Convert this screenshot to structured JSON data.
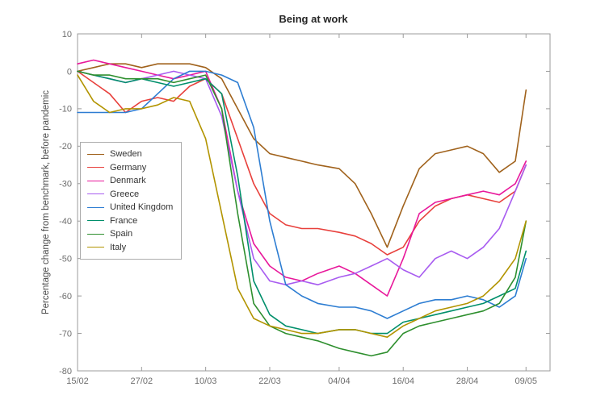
{
  "chart_data": {
    "type": "line",
    "title": "Being at work",
    "xlabel": "",
    "ylabel": "Percentage change from benchmark, before pandemic",
    "ylim": [
      -80,
      10
    ],
    "xlim_days": [
      0,
      88.5
    ],
    "grid": false,
    "legend_position": "top-left-inside",
    "yticks": [
      10,
      0,
      -10,
      -20,
      -30,
      -40,
      -50,
      -60,
      -70,
      -80
    ],
    "xticks": [
      {
        "day": 0,
        "label": "15/02"
      },
      {
        "day": 12,
        "label": "27/02"
      },
      {
        "day": 24,
        "label": "10/03"
      },
      {
        "day": 36,
        "label": "22/03"
      },
      {
        "day": 49,
        "label": "04/04"
      },
      {
        "day": 61,
        "label": "16/04"
      },
      {
        "day": 73,
        "label": "28/04"
      },
      {
        "day": 84,
        "label": "09/05"
      }
    ],
    "x_days": [
      0,
      3,
      6,
      9,
      12,
      15,
      18,
      21,
      24,
      27,
      30,
      33,
      36,
      39,
      42,
      45,
      49,
      52,
      55,
      58,
      61,
      64,
      67,
      70,
      73,
      76,
      79,
      82,
      84
    ],
    "series": [
      {
        "name": "Sweden",
        "color": "#a0621c",
        "values": [
          0,
          1,
          2,
          2,
          1,
          2,
          2,
          2,
          1,
          -2,
          -10,
          -18,
          -22,
          -23,
          -24,
          -25,
          -26,
          -30,
          -38,
          -47,
          -36,
          -26,
          -22,
          -21,
          -20,
          -22,
          -27,
          -24,
          -5
        ]
      },
      {
        "name": "Germany",
        "color": "#e8403c",
        "values": [
          0,
          -3,
          -6,
          -11,
          -8,
          -7,
          -8,
          -4,
          -2,
          -6,
          -18,
          -30,
          -38,
          -41,
          -42,
          -42,
          -43,
          -44,
          -46,
          -49,
          -47,
          -40,
          -36,
          -34,
          -33,
          -34,
          -35,
          -32,
          -25
        ]
      },
      {
        "name": "Denmark",
        "color": "#e8189b",
        "values": [
          2,
          3,
          2,
          1,
          0,
          -1,
          -2,
          -1,
          0,
          -10,
          -32,
          -46,
          -52,
          -55,
          -56,
          -54,
          -52,
          -54,
          -57,
          -60,
          -50,
          -38,
          -35,
          -34,
          -33,
          -32,
          -33,
          -30,
          -24
        ]
      },
      {
        "name": "Greece",
        "color": "#a85cf0",
        "values": [
          0,
          -1,
          -2,
          -3,
          -2,
          -1,
          0,
          -1,
          -2,
          -12,
          -32,
          -50,
          -56,
          -57,
          -56,
          -57,
          -55,
          -54,
          -52,
          -50,
          -53,
          -55,
          -50,
          -48,
          -50,
          -47,
          -42,
          -32,
          -25
        ]
      },
      {
        "name": "United Kingdom",
        "color": "#2d7dd2",
        "values": [
          -11,
          -11,
          -11,
          -11,
          -10,
          -6,
          -2,
          0,
          0,
          -1,
          -3,
          -15,
          -40,
          -57,
          -60,
          -62,
          -63,
          -63,
          -64,
          -66,
          -64,
          -62,
          -61,
          -61,
          -60,
          -61,
          -63,
          -60,
          -50
        ]
      },
      {
        "name": "France",
        "color": "#008f6b",
        "values": [
          0,
          -1,
          -2,
          -3,
          -2,
          -3,
          -4,
          -3,
          -2,
          -6,
          -28,
          -56,
          -65,
          -68,
          -69,
          -70,
          -69,
          -69,
          -70,
          -70,
          -67,
          -66,
          -65,
          -64,
          -63,
          -62,
          -60,
          -58,
          -48
        ]
      },
      {
        "name": "Spain",
        "color": "#2e8f2e",
        "values": [
          0,
          -1,
          -1,
          -2,
          -2,
          -2,
          -3,
          -2,
          -1,
          -10,
          -38,
          -62,
          -68,
          -70,
          -71,
          -72,
          -74,
          -75,
          -76,
          -75,
          -70,
          -68,
          -67,
          -66,
          -65,
          -64,
          -62,
          -55,
          -40
        ]
      },
      {
        "name": "Italy",
        "color": "#b29400",
        "values": [
          -1,
          -8,
          -11,
          -10,
          -10,
          -9,
          -7,
          -8,
          -18,
          -38,
          -58,
          -66,
          -68,
          -69,
          -70,
          -70,
          -69,
          -69,
          -70,
          -71,
          -68,
          -66,
          -64,
          -63,
          -62,
          -60,
          -56,
          -50,
          -40
        ]
      }
    ]
  }
}
